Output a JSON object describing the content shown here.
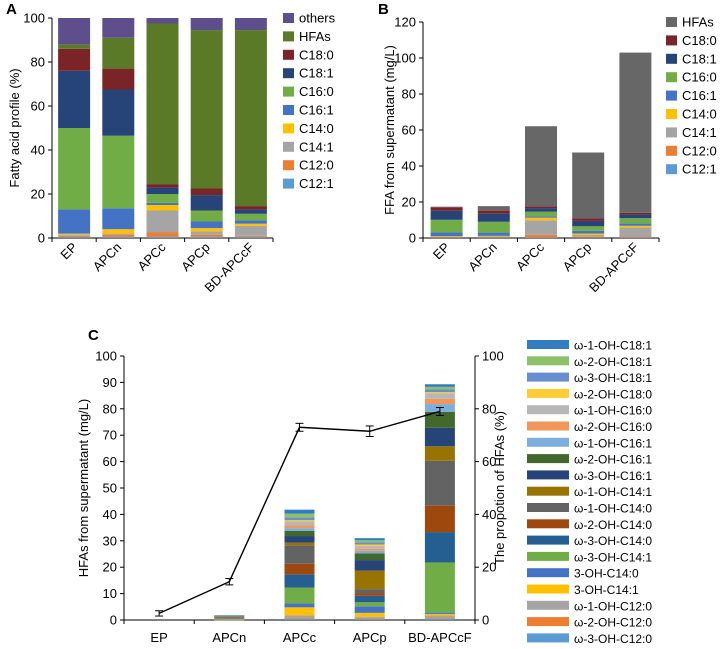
{
  "chart_data": [
    {
      "panel": "A",
      "type": "bar",
      "stacked": true,
      "ylabel": "Fatty acid profile (%)",
      "ylim": [
        0,
        100
      ],
      "yticks": [
        0,
        20,
        40,
        60,
        80,
        100
      ],
      "categories": [
        "EP",
        "APCn",
        "APCc",
        "APCp",
        "BD-APCcF"
      ],
      "series": [
        {
          "name": "C12:1",
          "color": "#5b9bd5",
          "values": [
            0.5,
            0.5,
            0.5,
            0.5,
            0.5
          ]
        },
        {
          "name": "C12:0",
          "color": "#ed7d31",
          "values": [
            0.5,
            1,
            2,
            1,
            0.5
          ]
        },
        {
          "name": "C14:1",
          "color": "#a5a5a5",
          "values": [
            0.5,
            0.5,
            10,
            1.5,
            4.5
          ]
        },
        {
          "name": "C14:0",
          "color": "#ffc000",
          "values": [
            0.5,
            2,
            2.5,
            1.5,
            1
          ]
        },
        {
          "name": "C16:1",
          "color": "#4472c4",
          "values": [
            11,
            9.5,
            1,
            3,
            1.5
          ]
        },
        {
          "name": "C16:0",
          "color": "#70ad47",
          "values": [
            37,
            33,
            4,
            5,
            3
          ]
        },
        {
          "name": "C18:1",
          "color": "#264478",
          "values": [
            26,
            21,
            3,
            7,
            2
          ]
        },
        {
          "name": "C18:0",
          "color": "#7b2428",
          "values": [
            10,
            9.5,
            1.5,
            3,
            1.5
          ]
        },
        {
          "name": "HFAs",
          "color": "#5a7a28",
          "values": [
            2,
            14,
            73,
            72,
            80
          ]
        },
        {
          "name": "others",
          "color": "#5e4f8c",
          "values": [
            12,
            9,
            2.5,
            5.5,
            5.5
          ]
        }
      ]
    },
    {
      "panel": "B",
      "type": "bar",
      "stacked": true,
      "ylabel": "FFA from supermatant (mg/L)",
      "ylim": [
        0,
        120
      ],
      "yticks": [
        0,
        20,
        40,
        60,
        80,
        100,
        120
      ],
      "categories": [
        "EP",
        "APCn",
        "APCc",
        "APCp",
        "BD-APCcF"
      ],
      "series": [
        {
          "name": "C12:1",
          "color": "#5b9bd5",
          "values": [
            0.2,
            0.2,
            0.3,
            0.2,
            0.3
          ]
        },
        {
          "name": "C12:0",
          "color": "#ed7d31",
          "values": [
            0.3,
            0.3,
            1.5,
            0.5,
            0.5
          ]
        },
        {
          "name": "C14:1",
          "color": "#a5a5a5",
          "values": [
            0.3,
            0.3,
            8,
            1,
            5
          ]
        },
        {
          "name": "C14:0",
          "color": "#ffc000",
          "values": [
            0.3,
            0.4,
            1.5,
            0.8,
            1
          ]
        },
        {
          "name": "C16:1",
          "color": "#4472c4",
          "values": [
            2,
            1.8,
            0.8,
            1.5,
            1.2
          ]
        },
        {
          "name": "C16:0",
          "color": "#70ad47",
          "values": [
            7,
            6,
            2.5,
            2.5,
            3
          ]
        },
        {
          "name": "C18:1",
          "color": "#264478",
          "values": [
            5,
            4.5,
            2,
            3,
            2
          ]
        },
        {
          "name": "C18:0",
          "color": "#7b2428",
          "values": [
            2,
            1.7,
            1,
            1.5,
            1
          ]
        },
        {
          "name": "HFAs",
          "color": "#676767",
          "values": [
            0.3,
            2.5,
            44.5,
            36.5,
            89
          ]
        }
      ]
    },
    {
      "panel": "C",
      "type": "bar",
      "stacked": true,
      "ylabel": "HFAs from supermatant (mg/L)",
      "y2label": "The propotion of HFAs (%)",
      "ylim": [
        0,
        100
      ],
      "yticks": [
        0,
        10,
        20,
        30,
        40,
        50,
        60,
        70,
        80,
        90,
        100
      ],
      "y2lim": [
        0,
        100
      ],
      "y2ticks": [
        0,
        20,
        40,
        60,
        80,
        100
      ],
      "categories": [
        "EP",
        "APCn",
        "APCc",
        "APCp",
        "BD-APCcF"
      ],
      "series": [
        {
          "name": "ω-3-OH-C12:0",
          "color": "#5b9bd5",
          "values": [
            0,
            0.05,
            0.5,
            0.4,
            0.5
          ]
        },
        {
          "name": "ω-2-OH-C12:0",
          "color": "#ed7d31",
          "values": [
            0,
            0.05,
            0.5,
            0.3,
            0.5
          ]
        },
        {
          "name": "ω-1-OH-C12:0",
          "color": "#a5a5a5",
          "values": [
            0,
            0.05,
            0.8,
            0.5,
            0.8
          ]
        },
        {
          "name": "3-OH-C14:1",
          "color": "#ffc000",
          "values": [
            0,
            0.1,
            3,
            1.5,
            0.5
          ]
        },
        {
          "name": "3-OH-C14:0",
          "color": "#4472c4",
          "values": [
            0,
            0.1,
            1.5,
            2.5,
            0.5
          ]
        },
        {
          "name": "ω-3-OH-C14:1",
          "color": "#70ad47",
          "values": [
            0,
            0.1,
            6,
            1.5,
            19
          ]
        },
        {
          "name": "ω-3-OH-C14:0",
          "color": "#255e91",
          "values": [
            0,
            0.2,
            5,
            2.5,
            11.5
          ]
        },
        {
          "name": "ω-2-OH-C14:0",
          "color": "#9e480e",
          "values": [
            0,
            0.2,
            4,
            1,
            10
          ]
        },
        {
          "name": "ω-1-OH-C14:0",
          "color": "#636363",
          "values": [
            0,
            0.3,
            7,
            1.5,
            17
          ]
        },
        {
          "name": "ω-1-OH-C14:1",
          "color": "#997300",
          "values": [
            0,
            0.1,
            1,
            7,
            5.5
          ]
        },
        {
          "name": "ω-3-OH-C16:1",
          "color": "#264478",
          "values": [
            0,
            0.1,
            2.5,
            4,
            7
          ]
        },
        {
          "name": "ω-2-OH-C16:1",
          "color": "#43682b",
          "values": [
            0,
            0.1,
            2,
            2.5,
            6
          ]
        },
        {
          "name": "ω-1-OH-C16:1",
          "color": "#7cafdd",
          "values": [
            0,
            0.05,
            1,
            1,
            3
          ]
        },
        {
          "name": "ω-2-OH-C16:0",
          "color": "#f1975a",
          "values": [
            0,
            0.05,
            1,
            0.8,
            2
          ]
        },
        {
          "name": "ω-1-OH-C16:0",
          "color": "#b7b7b7",
          "values": [
            0,
            0.05,
            1.5,
            1,
            2
          ]
        },
        {
          "name": "ω-2-OH-C18:0",
          "color": "#ffcd33",
          "values": [
            0,
            0.05,
            0.5,
            0.6,
            0.5
          ]
        },
        {
          "name": "ω-3-OH-C18:1",
          "color": "#698ed0",
          "values": [
            0,
            0.05,
            1,
            0.8,
            1
          ]
        },
        {
          "name": "ω-2-OH-C18:1",
          "color": "#8cc168",
          "values": [
            0,
            0.05,
            1.5,
            0.8,
            1
          ]
        },
        {
          "name": "ω-1-OH-C18:1",
          "color": "#327dc2",
          "values": [
            0,
            0.05,
            1.5,
            0.8,
            1
          ]
        }
      ],
      "line": {
        "name": "The propotion of HFAs (%)",
        "axis": "y2",
        "color": "#000000",
        "values": [
          2.5,
          14.5,
          73,
          71.5,
          79
        ],
        "errors": [
          1,
          1.2,
          1.5,
          2,
          1.5
        ]
      }
    }
  ],
  "panel_labels": {
    "a": "A",
    "b": "B",
    "c": "C"
  }
}
